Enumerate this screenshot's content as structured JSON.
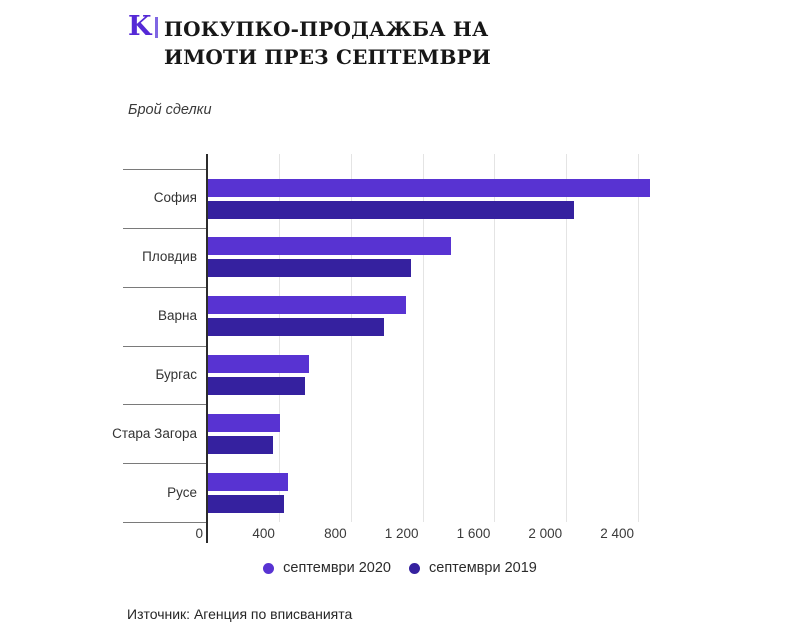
{
  "brand": {
    "logo_letter": "K",
    "logo_color": "#5529d6",
    "logo_bar_color": "#7f66e3"
  },
  "header": {
    "title_line1": "ПОКУПКО-ПРОДАЖБА НА",
    "title_line2": "ИМОТИ ПРЕЗ СЕПТЕМВРИ",
    "subtitle": "Брой сделки"
  },
  "chart_data": {
    "type": "bar",
    "orientation": "horizontal",
    "title": "Покупко-продажба на имоти през септември",
    "xlabel": "",
    "ylabel": "Брой сделки",
    "categories": [
      "София",
      "Пловдив",
      "Варна",
      "Бургас",
      "Стара Загора",
      "Русе"
    ],
    "series": [
      {
        "name": "септември 2020",
        "color": "#5833d2",
        "values": [
          2460,
          1355,
          1100,
          565,
          400,
          445
        ]
      },
      {
        "name": "септември 2019",
        "color": "#35219f",
        "values": [
          2040,
          1130,
          980,
          540,
          360,
          425
        ]
      }
    ],
    "xlim": [
      0,
      2560
    ],
    "xticks": [
      0,
      400,
      800,
      1200,
      1600,
      2000,
      2400
    ],
    "xtick_labels": [
      "0",
      "400",
      "800",
      "1 200",
      "1 600",
      "2 000",
      "2 400"
    ],
    "grid": "vertical",
    "legend_position": "bottom"
  },
  "footer": {
    "source": "Източник: Агенция по вписванията"
  }
}
